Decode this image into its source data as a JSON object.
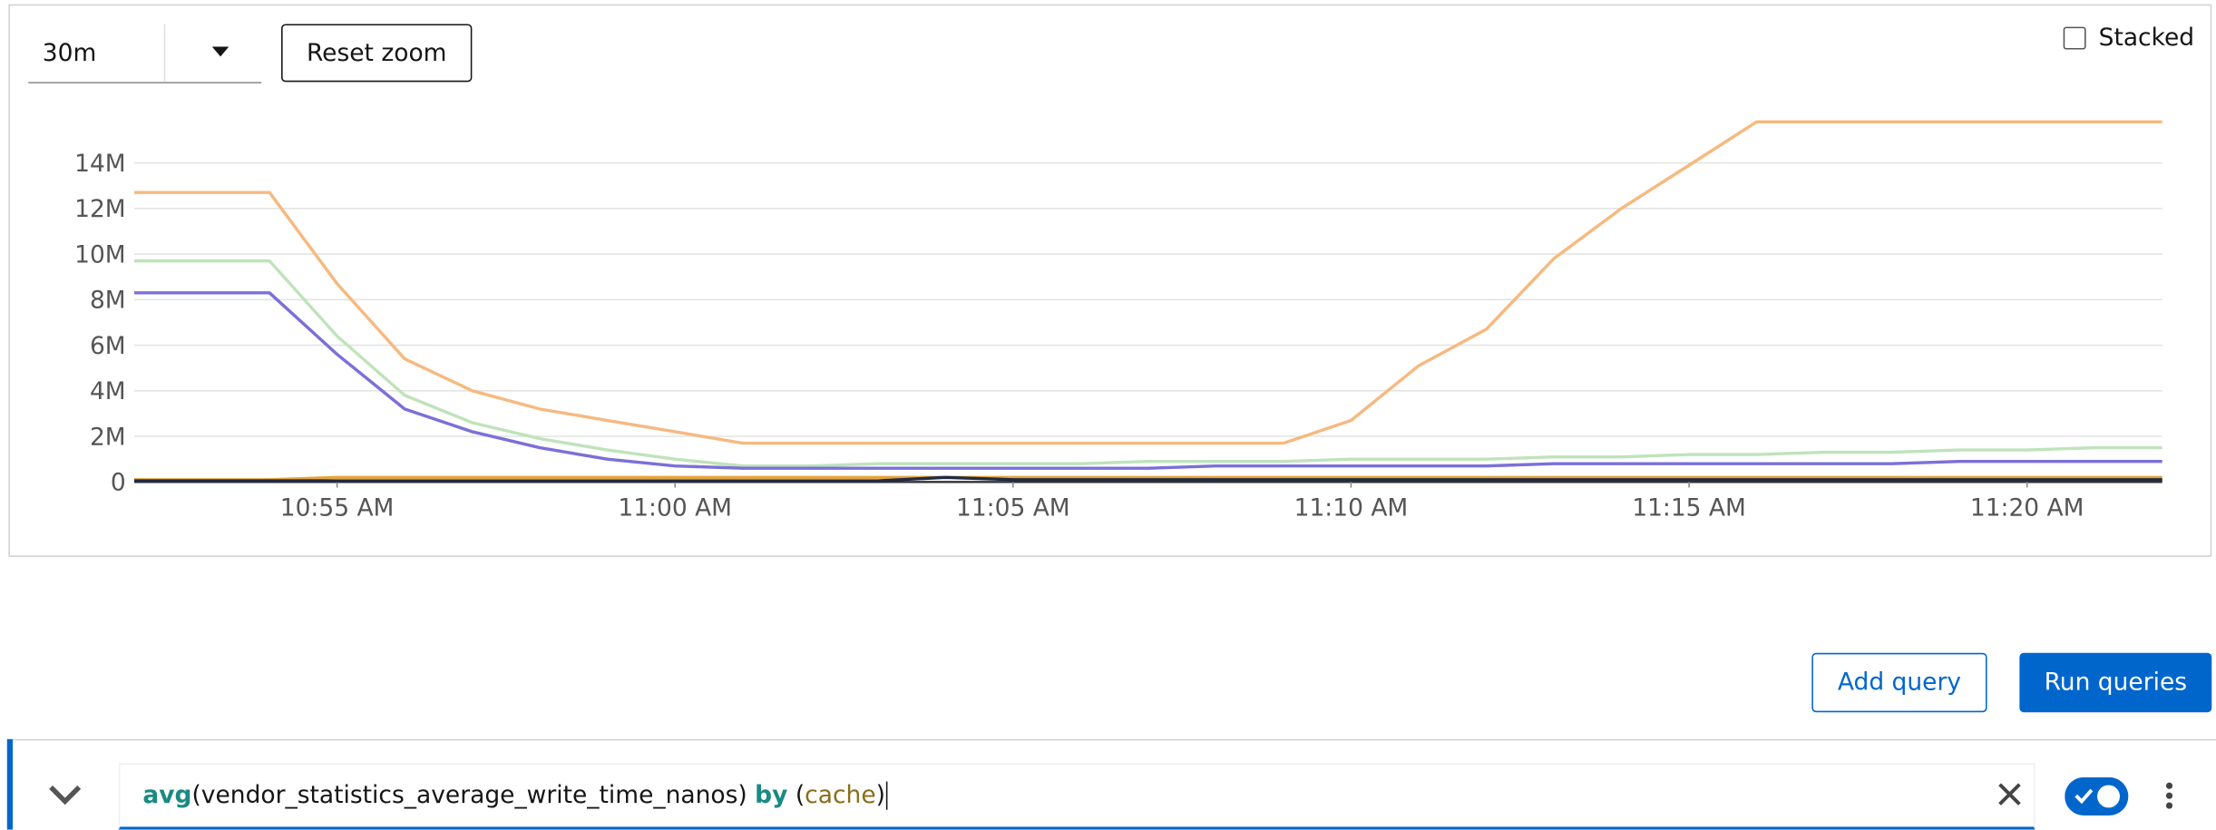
{
  "controls": {
    "range": "30m",
    "reset": "Reset zoom",
    "stacked": "Stacked"
  },
  "buttons": {
    "add": "Add query",
    "run": "Run queries"
  },
  "query": {
    "tokens": [
      {
        "text": "avg",
        "color": "#1a8a83",
        "bold": true
      },
      {
        "text": "(vendor_statistics_average_write_time_nanos) ",
        "color": "#151515",
        "bold": false
      },
      {
        "text": "by",
        "color": "#1a8a83",
        "bold": true
      },
      {
        "text": " (",
        "color": "#151515",
        "bold": false
      },
      {
        "text": "cache",
        "color": "#8a6d1a",
        "bold": false
      },
      {
        "text": ")",
        "color": "#151515",
        "bold": false
      }
    ]
  },
  "chart_data": {
    "type": "line",
    "x": [
      "10:52 AM",
      "10:53 AM",
      "10:54 AM",
      "10:55 AM",
      "10:56 AM",
      "10:57 AM",
      "10:58 AM",
      "10:59 AM",
      "11:00 AM",
      "11:01 AM",
      "11:02 AM",
      "11:03 AM",
      "11:04 AM",
      "11:05 AM",
      "11:06 AM",
      "11:07 AM",
      "11:08 AM",
      "11:09 AM",
      "11:10 AM",
      "11:11 AM",
      "11:12 AM",
      "11:13 AM",
      "11:14 AM",
      "11:15 AM",
      "11:16 AM",
      "11:17 AM",
      "11:18 AM",
      "11:19 AM",
      "11:20 AM",
      "11:21 AM",
      "11:22 AM"
    ],
    "xlim": [
      "10:52 AM",
      "11:22 AM"
    ],
    "xticks": [
      "10:55 AM",
      "11:00 AM",
      "11:05 AM",
      "11:10 AM",
      "11:15 AM",
      "11:20 AM"
    ],
    "ylim": [
      0,
      16000000
    ],
    "yticks": [
      0,
      {
        "value": 2000000,
        "label": "2M"
      },
      {
        "value": 4000000,
        "label": "4M"
      },
      {
        "value": 6000000,
        "label": "6M"
      },
      {
        "value": 8000000,
        "label": "8M"
      },
      {
        "value": 10000000,
        "label": "10M"
      },
      {
        "value": 12000000,
        "label": "12M"
      },
      {
        "value": 14000000,
        "label": "14M"
      }
    ],
    "grid": true,
    "series": [
      {
        "color": "#f6b97f",
        "values": [
          12700000,
          12700000,
          12700000,
          8700000,
          5400000,
          4000000,
          3200000,
          2700000,
          2200000,
          1700000,
          1700000,
          1700000,
          1700000,
          1700000,
          1700000,
          1700000,
          1700000,
          1700000,
          2700000,
          5100000,
          6700000,
          9800000,
          12000000,
          13900000,
          15800000,
          15800000,
          15800000,
          15800000,
          15800000,
          15800000,
          15800000
        ]
      },
      {
        "color": "#bfe3bb",
        "values": [
          9700000,
          9700000,
          9700000,
          6400000,
          3800000,
          2600000,
          1900000,
          1400000,
          1000000,
          700000,
          700000,
          800000,
          800000,
          800000,
          800000,
          900000,
          900000,
          900000,
          1000000,
          1000000,
          1000000,
          1100000,
          1100000,
          1200000,
          1200000,
          1300000,
          1300000,
          1400000,
          1400000,
          1500000,
          1500000
        ]
      },
      {
        "color": "#7b70d8",
        "values": [
          8300000,
          8300000,
          8300000,
          5600000,
          3200000,
          2200000,
          1500000,
          1000000,
          700000,
          600000,
          600000,
          600000,
          600000,
          600000,
          600000,
          600000,
          700000,
          700000,
          700000,
          700000,
          700000,
          800000,
          800000,
          800000,
          800000,
          800000,
          800000,
          900000,
          900000,
          900000,
          900000
        ]
      },
      {
        "color": "#e5a43a",
        "values": [
          100000,
          100000,
          100000,
          200000,
          200000,
          200000,
          200000,
          200000,
          200000,
          200000,
          200000,
          200000,
          200000,
          200000,
          200000,
          200000,
          200000,
          200000,
          200000,
          200000,
          200000,
          200000,
          200000,
          200000,
          200000,
          200000,
          200000,
          200000,
          200000,
          200000,
          200000
        ]
      },
      {
        "color": "#1f2a44",
        "values": [
          50000,
          50000,
          50000,
          50000,
          50000,
          50000,
          50000,
          50000,
          50000,
          50000,
          50000,
          50000,
          200000,
          100000,
          100000,
          100000,
          100000,
          100000,
          100000,
          100000,
          100000,
          100000,
          100000,
          100000,
          100000,
          100000,
          100000,
          100000,
          100000,
          100000,
          100000
        ]
      }
    ]
  }
}
